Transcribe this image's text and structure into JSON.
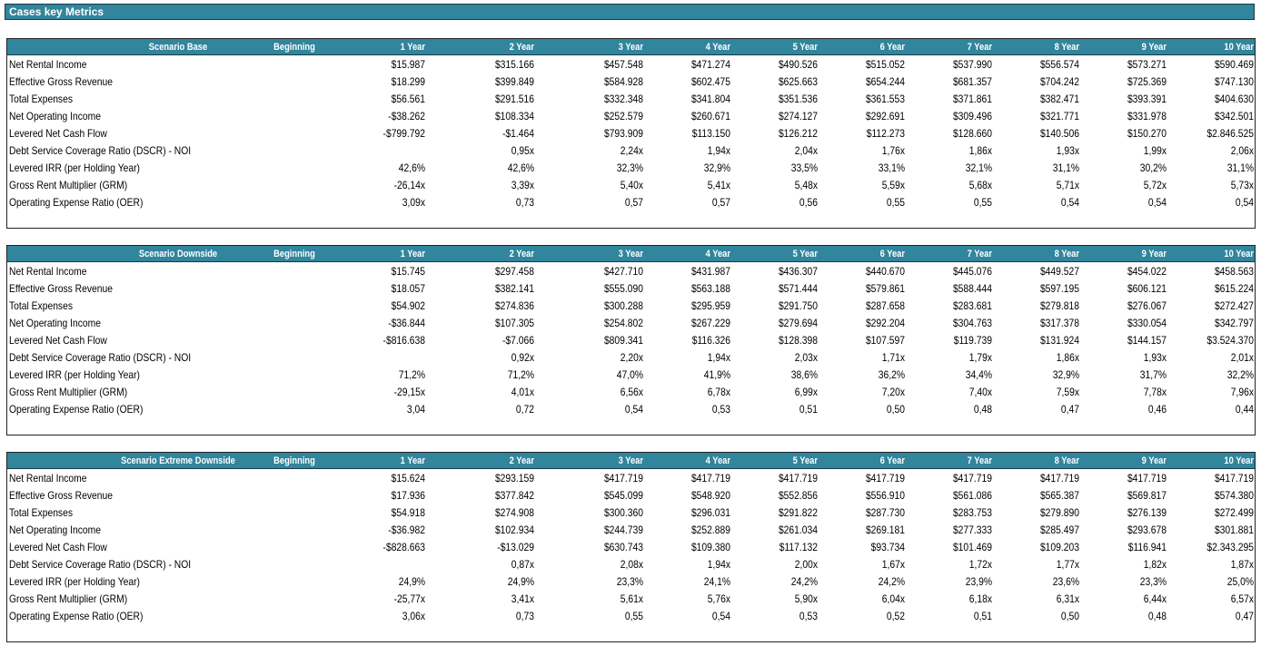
{
  "page_title": "Cases key Metrics",
  "columns": [
    "Beginning",
    "1 Year",
    "2 Year",
    "3 Year",
    "4 Year",
    "5 Year",
    "6 Year",
    "7 Year",
    "8 Year",
    "9 Year",
    "10 Year"
  ],
  "scenarios": [
    {
      "name": "Scenario Base",
      "rows": [
        {
          "label": "Net Rental Income",
          "values": [
            "",
            "$15.987",
            "$315.166",
            "$457.548",
            "$471.274",
            "$490.526",
            "$515.052",
            "$537.990",
            "$556.574",
            "$573.271",
            "$590.469"
          ]
        },
        {
          "label": "Effective Gross Revenue",
          "values": [
            "",
            "$18.299",
            "$399.849",
            "$584.928",
            "$602.475",
            "$625.663",
            "$654.244",
            "$681.357",
            "$704.242",
            "$725.369",
            "$747.130"
          ]
        },
        {
          "label": "Total Expenses",
          "values": [
            "",
            "$56.561",
            "$291.516",
            "$332.348",
            "$341.804",
            "$351.536",
            "$361.553",
            "$371.861",
            "$382.471",
            "$393.391",
            "$404.630"
          ]
        },
        {
          "label": "Net Operating Income",
          "values": [
            "",
            "-$38.262",
            "$108.334",
            "$252.579",
            "$260.671",
            "$274.127",
            "$292.691",
            "$309.496",
            "$321.771",
            "$331.978",
            "$342.501"
          ]
        },
        {
          "label": "Levered Net Cash Flow",
          "values": [
            "",
            "-$799.792",
            "-$1.464",
            "$793.909",
            "$113.150",
            "$126.212",
            "$112.273",
            "$128.660",
            "$140.506",
            "$150.270",
            "$2.846.525"
          ]
        },
        {
          "label": "Debt Service Coverage Ratio (DSCR) - NOI",
          "values": [
            "",
            "",
            "0,95x",
            "2,24x",
            "1,94x",
            "2,04x",
            "1,76x",
            "1,86x",
            "1,93x",
            "1,99x",
            "2,06x"
          ]
        },
        {
          "label": "Levered IRR (per Holding Year)",
          "values": [
            "",
            "42,6%",
            "42,6%",
            "32,3%",
            "32,9%",
            "33,5%",
            "33,1%",
            "32,1%",
            "31,1%",
            "30,2%",
            "31,1%"
          ]
        },
        {
          "label": "Gross Rent Multiplier (GRM)",
          "values": [
            "",
            "-26,14x",
            "3,39x",
            "5,40x",
            "5,41x",
            "5,48x",
            "5,59x",
            "5,68x",
            "5,71x",
            "5,72x",
            "5,73x"
          ]
        },
        {
          "label": "Operating Expense Ratio (OER)",
          "values": [
            "",
            "3,09x",
            "0,73",
            "0,57",
            "0,57",
            "0,56",
            "0,55",
            "0,55",
            "0,54",
            "0,54",
            "0,54"
          ]
        }
      ]
    },
    {
      "name": "Scenario Downside",
      "rows": [
        {
          "label": "Net Rental Income",
          "values": [
            "",
            "$15.745",
            "$297.458",
            "$427.710",
            "$431.987",
            "$436.307",
            "$440.670",
            "$445.076",
            "$449.527",
            "$454.022",
            "$458.563"
          ]
        },
        {
          "label": "Effective Gross Revenue",
          "values": [
            "",
            "$18.057",
            "$382.141",
            "$555.090",
            "$563.188",
            "$571.444",
            "$579.861",
            "$588.444",
            "$597.195",
            "$606.121",
            "$615.224"
          ]
        },
        {
          "label": "Total Expenses",
          "values": [
            "",
            "$54.902",
            "$274.836",
            "$300.288",
            "$295.959",
            "$291.750",
            "$287.658",
            "$283.681",
            "$279.818",
            "$276.067",
            "$272.427"
          ]
        },
        {
          "label": "Net Operating Income",
          "values": [
            "",
            "-$36.844",
            "$107.305",
            "$254.802",
            "$267.229",
            "$279.694",
            "$292.204",
            "$304.763",
            "$317.378",
            "$330.054",
            "$342.797"
          ]
        },
        {
          "label": "Levered Net Cash Flow",
          "values": [
            "",
            "-$816.638",
            "-$7.066",
            "$809.341",
            "$116.326",
            "$128.398",
            "$107.597",
            "$119.739",
            "$131.924",
            "$144.157",
            "$3.524.370"
          ]
        },
        {
          "label": "Debt Service Coverage Ratio (DSCR) - NOI",
          "values": [
            "",
            "",
            "0,92x",
            "2,20x",
            "1,94x",
            "2,03x",
            "1,71x",
            "1,79x",
            "1,86x",
            "1,93x",
            "2,01x"
          ]
        },
        {
          "label": "Levered IRR (per Holding Year)",
          "values": [
            "",
            "71,2%",
            "71,2%",
            "47,0%",
            "41,9%",
            "38,6%",
            "36,2%",
            "34,4%",
            "32,9%",
            "31,7%",
            "32,2%"
          ]
        },
        {
          "label": "Gross Rent Multiplier (GRM)",
          "values": [
            "",
            "-29,15x",
            "4,01x",
            "6,56x",
            "6,78x",
            "6,99x",
            "7,20x",
            "7,40x",
            "7,59x",
            "7,78x",
            "7,96x"
          ]
        },
        {
          "label": "Operating Expense Ratio (OER)",
          "values": [
            "",
            "3,04",
            "0,72",
            "0,54",
            "0,53",
            "0,51",
            "0,50",
            "0,48",
            "0,47",
            "0,46",
            "0,44"
          ]
        }
      ]
    },
    {
      "name": "Scenario Extreme Downside",
      "rows": [
        {
          "label": "Net Rental Income",
          "values": [
            "",
            "$15.624",
            "$293.159",
            "$417.719",
            "$417.719",
            "$417.719",
            "$417.719",
            "$417.719",
            "$417.719",
            "$417.719",
            "$417.719"
          ]
        },
        {
          "label": "Effective Gross Revenue",
          "values": [
            "",
            "$17.936",
            "$377.842",
            "$545.099",
            "$548.920",
            "$552.856",
            "$556.910",
            "$561.086",
            "$565.387",
            "$569.817",
            "$574.380"
          ]
        },
        {
          "label": "Total Expenses",
          "values": [
            "",
            "$54.918",
            "$274.908",
            "$300.360",
            "$296.031",
            "$291.822",
            "$287.730",
            "$283.753",
            "$279.890",
            "$276.139",
            "$272.499"
          ]
        },
        {
          "label": "Net Operating Income",
          "values": [
            "",
            "-$36.982",
            "$102.934",
            "$244.739",
            "$252.889",
            "$261.034",
            "$269.181",
            "$277.333",
            "$285.497",
            "$293.678",
            "$301.881"
          ]
        },
        {
          "label": "Levered Net Cash Flow",
          "values": [
            "",
            "-$828.663",
            "-$13.029",
            "$630.743",
            "$109.380",
            "$117.132",
            "$93.734",
            "$101.469",
            "$109.203",
            "$116.941",
            "$2.343.295"
          ]
        },
        {
          "label": "Debt Service Coverage Ratio (DSCR) - NOI",
          "values": [
            "",
            "",
            "0,87x",
            "2,08x",
            "1,94x",
            "2,00x",
            "1,67x",
            "1,72x",
            "1,77x",
            "1,82x",
            "1,87x"
          ]
        },
        {
          "label": "Levered IRR (per Holding Year)",
          "values": [
            "",
            "24,9%",
            "24,9%",
            "23,3%",
            "24,1%",
            "24,2%",
            "24,2%",
            "23,9%",
            "23,6%",
            "23,3%",
            "25,0%"
          ]
        },
        {
          "label": "Gross Rent Multiplier (GRM)",
          "values": [
            "",
            "-25,77x",
            "3,41x",
            "5,61x",
            "5,76x",
            "5,90x",
            "6,04x",
            "6,18x",
            "6,31x",
            "6,44x",
            "6,57x"
          ]
        },
        {
          "label": "Operating Expense Ratio (OER)",
          "values": [
            "",
            "3,06x",
            "0,73",
            "0,55",
            "0,54",
            "0,53",
            "0,52",
            "0,51",
            "0,50",
            "0,48",
            "0,47"
          ]
        }
      ]
    }
  ]
}
